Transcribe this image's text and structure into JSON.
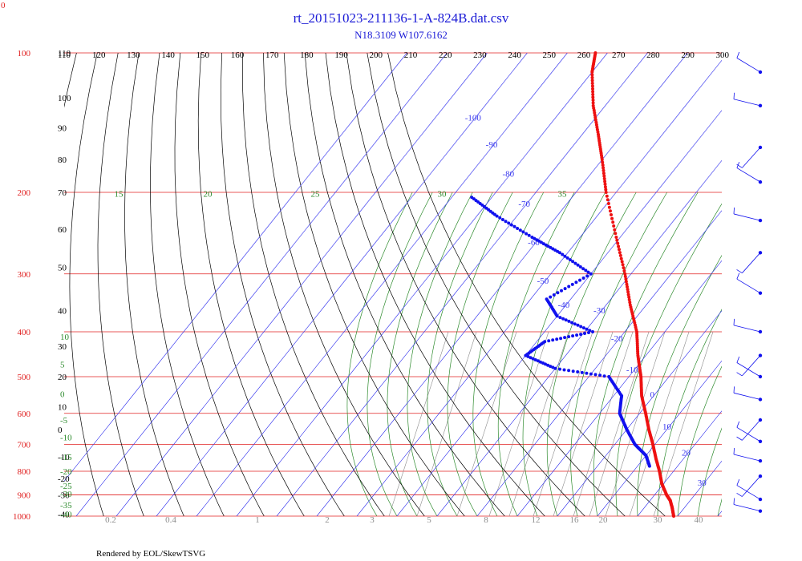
{
  "title": "rt_20151023-211136-1-A-824B.dat.csv",
  "subtitle": "N18.3109 W107.6162",
  "footer": "Rendered by EOL/SkewTSVG",
  "corner_label": "0",
  "colors": {
    "title": "#1a1ad6",
    "isobar": "#e02020",
    "isotherm": "#3a3aee",
    "dry_adiabat": "#000000",
    "moist_adiabat": "#2e8b2e",
    "mixing_ratio": "#8c8c8c",
    "temperature_trace": "#ee1111",
    "dewpoint_trace": "#1111ee",
    "wind_barb": "#1111ee"
  },
  "chart_data": {
    "type": "skew-t",
    "pressure_axis": {
      "scale": "log",
      "range_hpa": [
        1000,
        100
      ],
      "ticks": [
        100,
        200,
        300,
        400,
        500,
        600,
        700,
        800,
        900,
        1000
      ]
    },
    "top_labels": [
      "110",
      "120",
      "130",
      "140",
      "150",
      "160",
      "170",
      "180",
      "190",
      "200",
      "210",
      "220",
      "230",
      "240",
      "250",
      "260",
      "270",
      "280",
      "290",
      "300"
    ],
    "left_labels": [
      {
        "text": "110",
        "p": 100
      },
      {
        "text": "100",
        "p": 125
      },
      {
        "text": "90",
        "p": 145
      },
      {
        "text": "80",
        "p": 170
      },
      {
        "text": "70",
        "p": 200
      },
      {
        "text": "60",
        "p": 240
      },
      {
        "text": "50",
        "p": 290
      },
      {
        "text": "40",
        "p": 360
      },
      {
        "text": "30",
        "p": 430
      },
      {
        "text": "20",
        "p": 500
      },
      {
        "text": "10",
        "p": 580
      },
      {
        "text": "0",
        "p": 650
      },
      {
        "text": "-10",
        "p": 745
      },
      {
        "text": "-20",
        "p": 830
      },
      {
        "text": "-30",
        "p": 900
      },
      {
        "text": "-40",
        "p": 990
      }
    ],
    "left_moist_labels": [
      {
        "text": "10",
        "p": 410
      },
      {
        "text": "5",
        "p": 470
      },
      {
        "text": "0",
        "p": 545
      },
      {
        "text": "-5",
        "p": 620
      },
      {
        "text": "-10",
        "p": 675
      },
      {
        "text": "-15",
        "p": 745
      },
      {
        "text": "-20",
        "p": 800
      },
      {
        "text": "-25",
        "p": 860
      },
      {
        "text": "-30",
        "p": 895
      },
      {
        "text": "-35",
        "p": 945
      },
      {
        "text": "-40",
        "p": 990
      }
    ],
    "isotherm_labels": [
      {
        "text": "-100",
        "t": -100,
        "p": 140
      },
      {
        "text": "-90",
        "t": -90,
        "p": 160
      },
      {
        "text": "-80",
        "t": -80,
        "p": 185
      },
      {
        "text": "-70",
        "t": -70,
        "p": 215
      },
      {
        "text": "-60",
        "t": -60,
        "p": 260
      },
      {
        "text": "-50",
        "t": -50,
        "p": 315
      },
      {
        "text": "-40",
        "t": -40,
        "p": 355
      },
      {
        "text": "-30",
        "t": -30,
        "p": 365
      },
      {
        "text": "-20",
        "t": -20,
        "p": 420
      },
      {
        "text": "-10",
        "t": -10,
        "p": 490
      },
      {
        "text": "0",
        "t": 0,
        "p": 555
      },
      {
        "text": "10",
        "t": 10,
        "p": 650
      },
      {
        "text": "20",
        "t": 20,
        "p": 740
      },
      {
        "text": "30",
        "t": 30,
        "p": 860
      }
    ],
    "moist_labels_top": [
      {
        "text": "15",
        "p": 207
      },
      {
        "text": "20",
        "p": 207
      },
      {
        "text": "25",
        "p": 207
      },
      {
        "text": "30",
        "p": 207
      },
      {
        "text": "35",
        "p": 207
      }
    ],
    "mixing_ratio_labels": [
      "0.2",
      "0.4",
      "1",
      "2",
      "3",
      "5",
      "8",
      "12",
      "16",
      "20",
      "30",
      "40"
    ],
    "temperature_profile": [
      {
        "p": 1000,
        "t": 29
      },
      {
        "p": 960,
        "t": 27
      },
      {
        "p": 925,
        "t": 25
      },
      {
        "p": 900,
        "t": 23
      },
      {
        "p": 850,
        "t": 19.5
      },
      {
        "p": 800,
        "t": 16.5
      },
      {
        "p": 750,
        "t": 13
      },
      {
        "p": 700,
        "t": 9.5
      },
      {
        "p": 650,
        "t": 5.5
      },
      {
        "p": 600,
        "t": 1.5
      },
      {
        "p": 550,
        "t": -3
      },
      {
        "p": 500,
        "t": -7
      },
      {
        "p": 450,
        "t": -12
      },
      {
        "p": 400,
        "t": -17
      },
      {
        "p": 350,
        "t": -24
      },
      {
        "p": 300,
        "t": -31.5
      },
      {
        "p": 250,
        "t": -41
      },
      {
        "p": 200,
        "t": -52.5
      },
      {
        "p": 170,
        "t": -60
      },
      {
        "p": 150,
        "t": -66
      },
      {
        "p": 130,
        "t": -73
      },
      {
        "p": 110,
        "t": -80
      },
      {
        "p": 100,
        "t": -83
      }
    ],
    "dewpoint_profile": [
      {
        "p": 780,
        "t": 13
      },
      {
        "p": 740,
        "t": 10
      },
      {
        "p": 700,
        "t": 5
      },
      {
        "p": 650,
        "t": 0
      },
      {
        "p": 600,
        "t": -5
      },
      {
        "p": 550,
        "t": -8
      },
      {
        "p": 500,
        "t": -15
      },
      {
        "p": 480,
        "t": -30
      },
      {
        "p": 450,
        "t": -40
      },
      {
        "p": 420,
        "t": -38
      },
      {
        "p": 400,
        "t": -28
      },
      {
        "p": 370,
        "t": -40
      },
      {
        "p": 340,
        "t": -46
      },
      {
        "p": 300,
        "t": -40
      },
      {
        "p": 270,
        "t": -52
      },
      {
        "p": 250,
        "t": -62
      },
      {
        "p": 225,
        "t": -75
      },
      {
        "p": 205,
        "t": -85
      }
    ],
    "wind_levels_hpa": [
      110,
      130,
      160,
      190,
      230,
      270,
      330,
      400,
      450,
      500,
      560,
      620,
      690,
      760,
      820,
      920,
      975
    ]
  }
}
